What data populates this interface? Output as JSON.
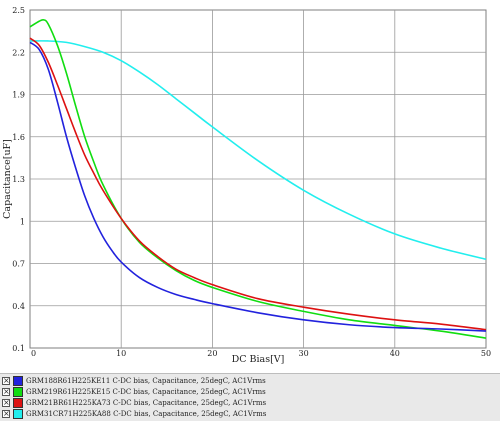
{
  "chart_data": {
    "type": "line",
    "title": "",
    "xlabel": "DC Bias[V]",
    "ylabel": "Capacitance[uF]",
    "xlim": [
      0,
      50
    ],
    "ylim": [
      0.1,
      2.5
    ],
    "x_ticks": [
      "0",
      "10",
      "20",
      "30",
      "40",
      "50"
    ],
    "y_ticks": [
      "0.1",
      "0.4",
      "0.7",
      "1",
      "1.3",
      "1.6",
      "1.9",
      "2.2",
      "2.5"
    ],
    "grid": true,
    "legend_position": "bottom",
    "series": [
      {
        "name": "GRM188R61H225KE11  C-DC bias, Capacitance, 25degC, AC1Vrms",
        "color": "#2222dd",
        "x": [
          0,
          1,
          2,
          3,
          4,
          5,
          6,
          7,
          8,
          9,
          10,
          12,
          14,
          16,
          18,
          20,
          25,
          30,
          35,
          40,
          45,
          50
        ],
        "y": [
          2.27,
          2.22,
          2.08,
          1.85,
          1.6,
          1.38,
          1.18,
          1.02,
          0.89,
          0.79,
          0.71,
          0.6,
          0.53,
          0.48,
          0.445,
          0.415,
          0.35,
          0.3,
          0.265,
          0.245,
          0.235,
          0.22
        ]
      },
      {
        "name": "GRM219R61H225KE15  C-DC bias, Capacitance, 25degC, AC1Vrms",
        "color": "#11dd11",
        "x": [
          0,
          1,
          1.5,
          2,
          3,
          4,
          5,
          6,
          7,
          8,
          10,
          12,
          14,
          16,
          18,
          20,
          25,
          30,
          35,
          40,
          45,
          50
        ],
        "y": [
          2.38,
          2.42,
          2.43,
          2.4,
          2.25,
          2.05,
          1.82,
          1.6,
          1.42,
          1.26,
          1.02,
          0.85,
          0.74,
          0.65,
          0.58,
          0.53,
          0.43,
          0.36,
          0.3,
          0.26,
          0.22,
          0.17
        ]
      },
      {
        "name": "GRM21BR61H225KA73  C-DC bias, Capacitance, 25degC, AC1Vrms",
        "color": "#dd1111",
        "x": [
          0,
          1,
          2,
          3,
          4,
          5,
          6,
          7,
          8,
          10,
          12,
          14,
          16,
          18,
          20,
          25,
          30,
          35,
          40,
          45,
          50
        ],
        "y": [
          2.3,
          2.25,
          2.13,
          1.97,
          1.8,
          1.63,
          1.47,
          1.34,
          1.22,
          1.02,
          0.86,
          0.75,
          0.66,
          0.6,
          0.55,
          0.45,
          0.39,
          0.34,
          0.3,
          0.27,
          0.23
        ]
      },
      {
        "name": "GRM31CR71H225KA88  C-DC bias, Capacitance, 25degC, AC1Vrms",
        "color": "#22eeee",
        "x": [
          0,
          2,
          4,
          6,
          8,
          10,
          12,
          14,
          16,
          18,
          20,
          25,
          30,
          35,
          40,
          45,
          50
        ],
        "y": [
          2.28,
          2.28,
          2.27,
          2.24,
          2.2,
          2.14,
          2.06,
          1.97,
          1.87,
          1.77,
          1.67,
          1.43,
          1.22,
          1.05,
          0.91,
          0.81,
          0.73
        ]
      }
    ]
  }
}
